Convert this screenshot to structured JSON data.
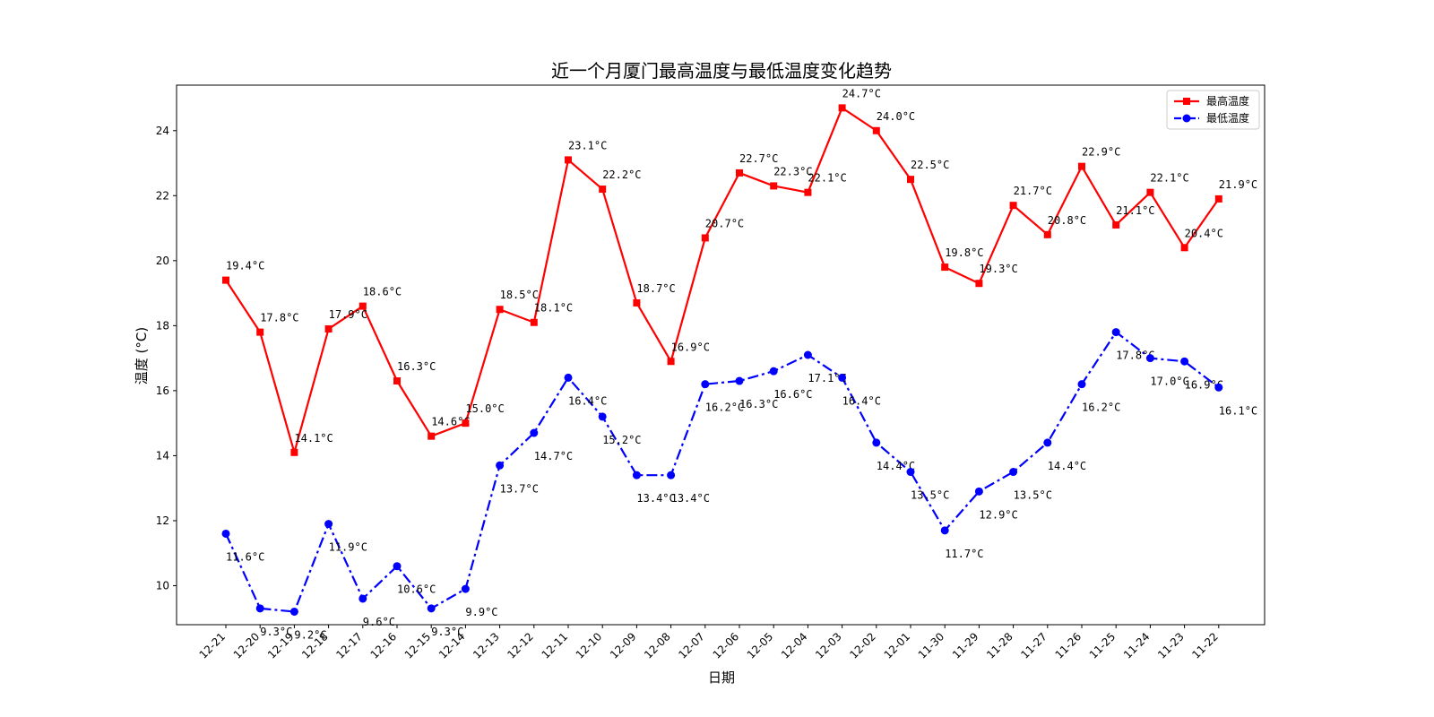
{
  "chart_data": {
    "type": "line",
    "title": "近一个月厦门最高温度与最低温度变化趋势",
    "xlabel": "日期",
    "ylabel": "温度 (°C)",
    "ylim": [
      8.8,
      25.4
    ],
    "yticks": [
      10,
      12,
      14,
      16,
      18,
      20,
      22,
      24
    ],
    "grid": false,
    "legend_position": "top-right",
    "categories": [
      "12-21",
      "12-20",
      "12-19",
      "12-18",
      "12-17",
      "12-16",
      "12-15",
      "12-14",
      "12-13",
      "12-12",
      "12-11",
      "12-10",
      "12-09",
      "12-08",
      "12-07",
      "12-06",
      "12-05",
      "12-04",
      "12-03",
      "12-02",
      "12-01",
      "11-30",
      "11-29",
      "11-28",
      "11-27",
      "11-26",
      "11-25",
      "11-24",
      "11-23",
      "11-22"
    ],
    "series": [
      {
        "name": "最高温度",
        "color": "#ff0000",
        "marker": "square",
        "line_style": "solid",
        "label_suffix": "°C",
        "values": [
          19.4,
          17.8,
          14.1,
          17.9,
          18.6,
          16.3,
          14.6,
          15.0,
          18.5,
          18.1,
          23.1,
          22.2,
          18.7,
          16.9,
          20.7,
          22.7,
          22.3,
          22.1,
          24.7,
          24.0,
          22.5,
          19.8,
          19.3,
          21.7,
          20.8,
          22.9,
          21.1,
          22.1,
          20.4,
          21.9
        ]
      },
      {
        "name": "最低温度",
        "color": "#0000ff",
        "marker": "circle",
        "line_style": "dashdot",
        "label_suffix": "°C",
        "values": [
          11.6,
          9.3,
          9.2,
          11.9,
          9.6,
          10.6,
          9.3,
          9.9,
          13.7,
          14.7,
          16.4,
          15.2,
          13.4,
          13.4,
          16.2,
          16.3,
          16.6,
          17.1,
          16.4,
          14.4,
          13.5,
          11.7,
          12.9,
          13.5,
          14.4,
          16.2,
          17.8,
          17.0,
          16.9,
          16.1
        ]
      }
    ]
  }
}
